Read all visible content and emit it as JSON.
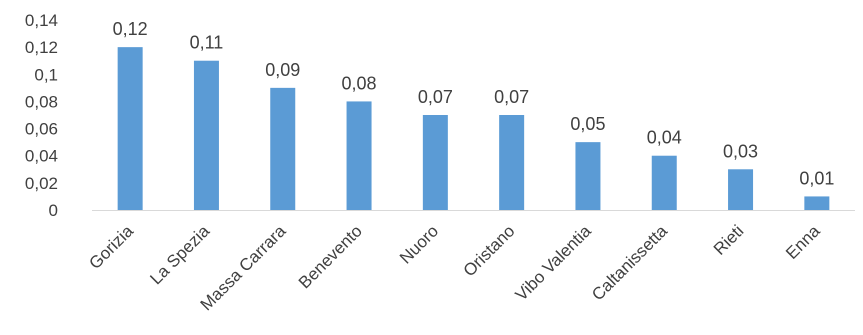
{
  "chart_data": {
    "type": "bar",
    "categories": [
      "Gorizia",
      "La Spezia",
      "Massa Carrara",
      "Benevento",
      "Nuoro",
      "Oristano",
      "Vibo Valentia",
      "Caltanissetta",
      "Rieti",
      "Enna"
    ],
    "values": [
      0.12,
      0.11,
      0.09,
      0.08,
      0.07,
      0.07,
      0.05,
      0.04,
      0.03,
      0.01
    ],
    "data_labels": [
      "0,12",
      "0,11",
      "0,09",
      "0,08",
      "0,07",
      "0,07",
      "0,05",
      "0,04",
      "0,03",
      "0,01"
    ],
    "y_ticks": [
      0,
      0.02,
      0.04,
      0.06,
      0.08,
      0.1,
      0.12,
      0.14
    ],
    "y_tick_labels": [
      "0",
      "0,02",
      "0,04",
      "0,06",
      "0,08",
      "0,1",
      "0,12",
      "0,14"
    ],
    "ylim": [
      0,
      0.14
    ],
    "grid": false,
    "legend": "none",
    "bar_color": "#5B9BD5",
    "axis_color": "#D9D9D9",
    "text_color": "#404040"
  }
}
